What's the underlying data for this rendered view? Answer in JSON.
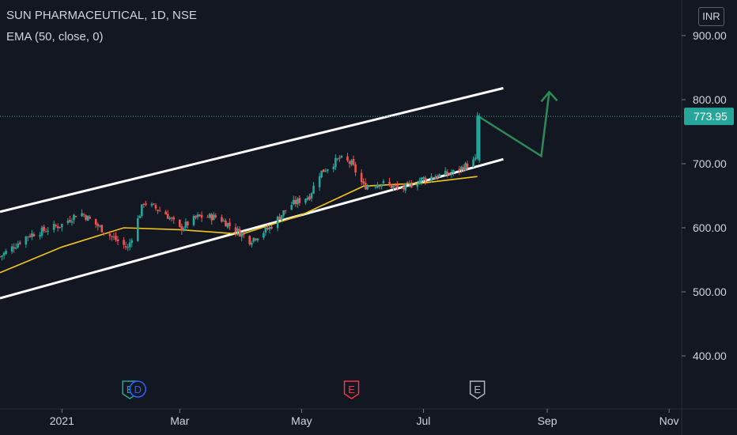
{
  "header": {
    "symbol_line": "SUN PHARMACEUTICAL, 1D, NSE",
    "indicator_line": "EMA (50, close, 0)",
    "currency": "INR"
  },
  "price_label": {
    "value": "773.95",
    "color": "#26a69a"
  },
  "event_markers": [
    {
      "icon": "earnings-icon",
      "label": "E",
      "color": "#26a69a",
      "date": "2021-02-04"
    },
    {
      "icon": "dividend-icon",
      "label": "D",
      "color": "#2962ff",
      "date": "2021-02-08"
    },
    {
      "icon": "earnings-icon",
      "label": "E",
      "color": "#f23645",
      "date": "2021-05-26"
    },
    {
      "icon": "earnings-icon",
      "label": "E",
      "color": "#b2b5be",
      "date": "2021-07-28"
    }
  ],
  "colors": {
    "background": "#131722",
    "up_candle": "#26a69a",
    "down_candle": "#ef5350",
    "ema_line": "#f5c518",
    "channel_lines": "#ffffff",
    "projection_arrow": "#2e8b57",
    "text": "#d1d4dc"
  },
  "chart_data": {
    "type": "candlestick",
    "title": "SUN PHARMACEUTICAL, 1D, NSE",
    "x_tick_labels": [
      "2021",
      "Mar",
      "May",
      "Jul",
      "Sep",
      "Nov"
    ],
    "x_tick_dates": [
      "2021-01-01",
      "2021-03-01",
      "2021-05-01",
      "2021-07-01",
      "2021-09-01",
      "2021-11-01"
    ],
    "y_tick_labels": [
      "400.00",
      "500.00",
      "600.00",
      "700.00",
      "800.00",
      "900.00"
    ],
    "y_ticks": [
      400,
      500,
      600,
      700,
      800,
      900
    ],
    "ylim": [
      320,
      925
    ],
    "xlim": [
      "2020-12-01",
      "2021-12-05"
    ],
    "grid": false,
    "last_price": 773.95,
    "candles_approx": {
      "start_date": "2020-12-01",
      "end_date": "2021-07-29",
      "close_keypoints": [
        [
          "2020-12-01",
          555
        ],
        [
          "2020-12-15",
          588
        ],
        [
          "2021-01-01",
          605
        ],
        [
          "2021-01-10",
          625
        ],
        [
          "2021-01-25",
          588
        ],
        [
          "2021-02-03",
          568
        ],
        [
          "2021-02-11",
          640
        ],
        [
          "2021-02-22",
          622
        ],
        [
          "2021-03-01",
          598
        ],
        [
          "2021-03-10",
          617
        ],
        [
          "2021-03-20",
          617
        ],
        [
          "2021-03-29",
          597
        ],
        [
          "2021-04-05",
          580
        ],
        [
          "2021-04-15",
          600
        ],
        [
          "2021-04-25",
          635
        ],
        [
          "2021-05-05",
          650
        ],
        [
          "2021-05-10",
          685
        ],
        [
          "2021-05-20",
          708
        ],
        [
          "2021-05-26",
          700
        ],
        [
          "2021-06-01",
          665
        ],
        [
          "2021-06-10",
          670
        ],
        [
          "2021-06-20",
          660
        ],
        [
          "2021-07-01",
          677
        ],
        [
          "2021-07-15",
          685
        ],
        [
          "2021-07-27",
          705
        ],
        [
          "2021-07-28",
          774
        ]
      ]
    },
    "series": [
      {
        "name": "EMA (50, close, 0)",
        "type": "line",
        "points": [
          [
            "2020-12-01",
            530
          ],
          [
            "2021-01-01",
            570
          ],
          [
            "2021-02-01",
            600
          ],
          [
            "2021-03-01",
            597
          ],
          [
            "2021-04-01",
            590
          ],
          [
            "2021-05-01",
            620
          ],
          [
            "2021-06-01",
            665
          ],
          [
            "2021-07-01",
            670
          ],
          [
            "2021-07-28",
            680
          ]
        ]
      }
    ],
    "drawings": {
      "channel_upper": [
        [
          "2020-12-01",
          625
        ],
        [
          "2021-08-10",
          818
        ]
      ],
      "channel_lower": [
        [
          "2020-12-01",
          490
        ],
        [
          "2021-08-10",
          707
        ]
      ],
      "projection": [
        [
          "2021-07-28",
          775
        ],
        [
          "2021-08-29",
          712
        ],
        [
          "2021-09-02",
          812
        ]
      ]
    }
  }
}
